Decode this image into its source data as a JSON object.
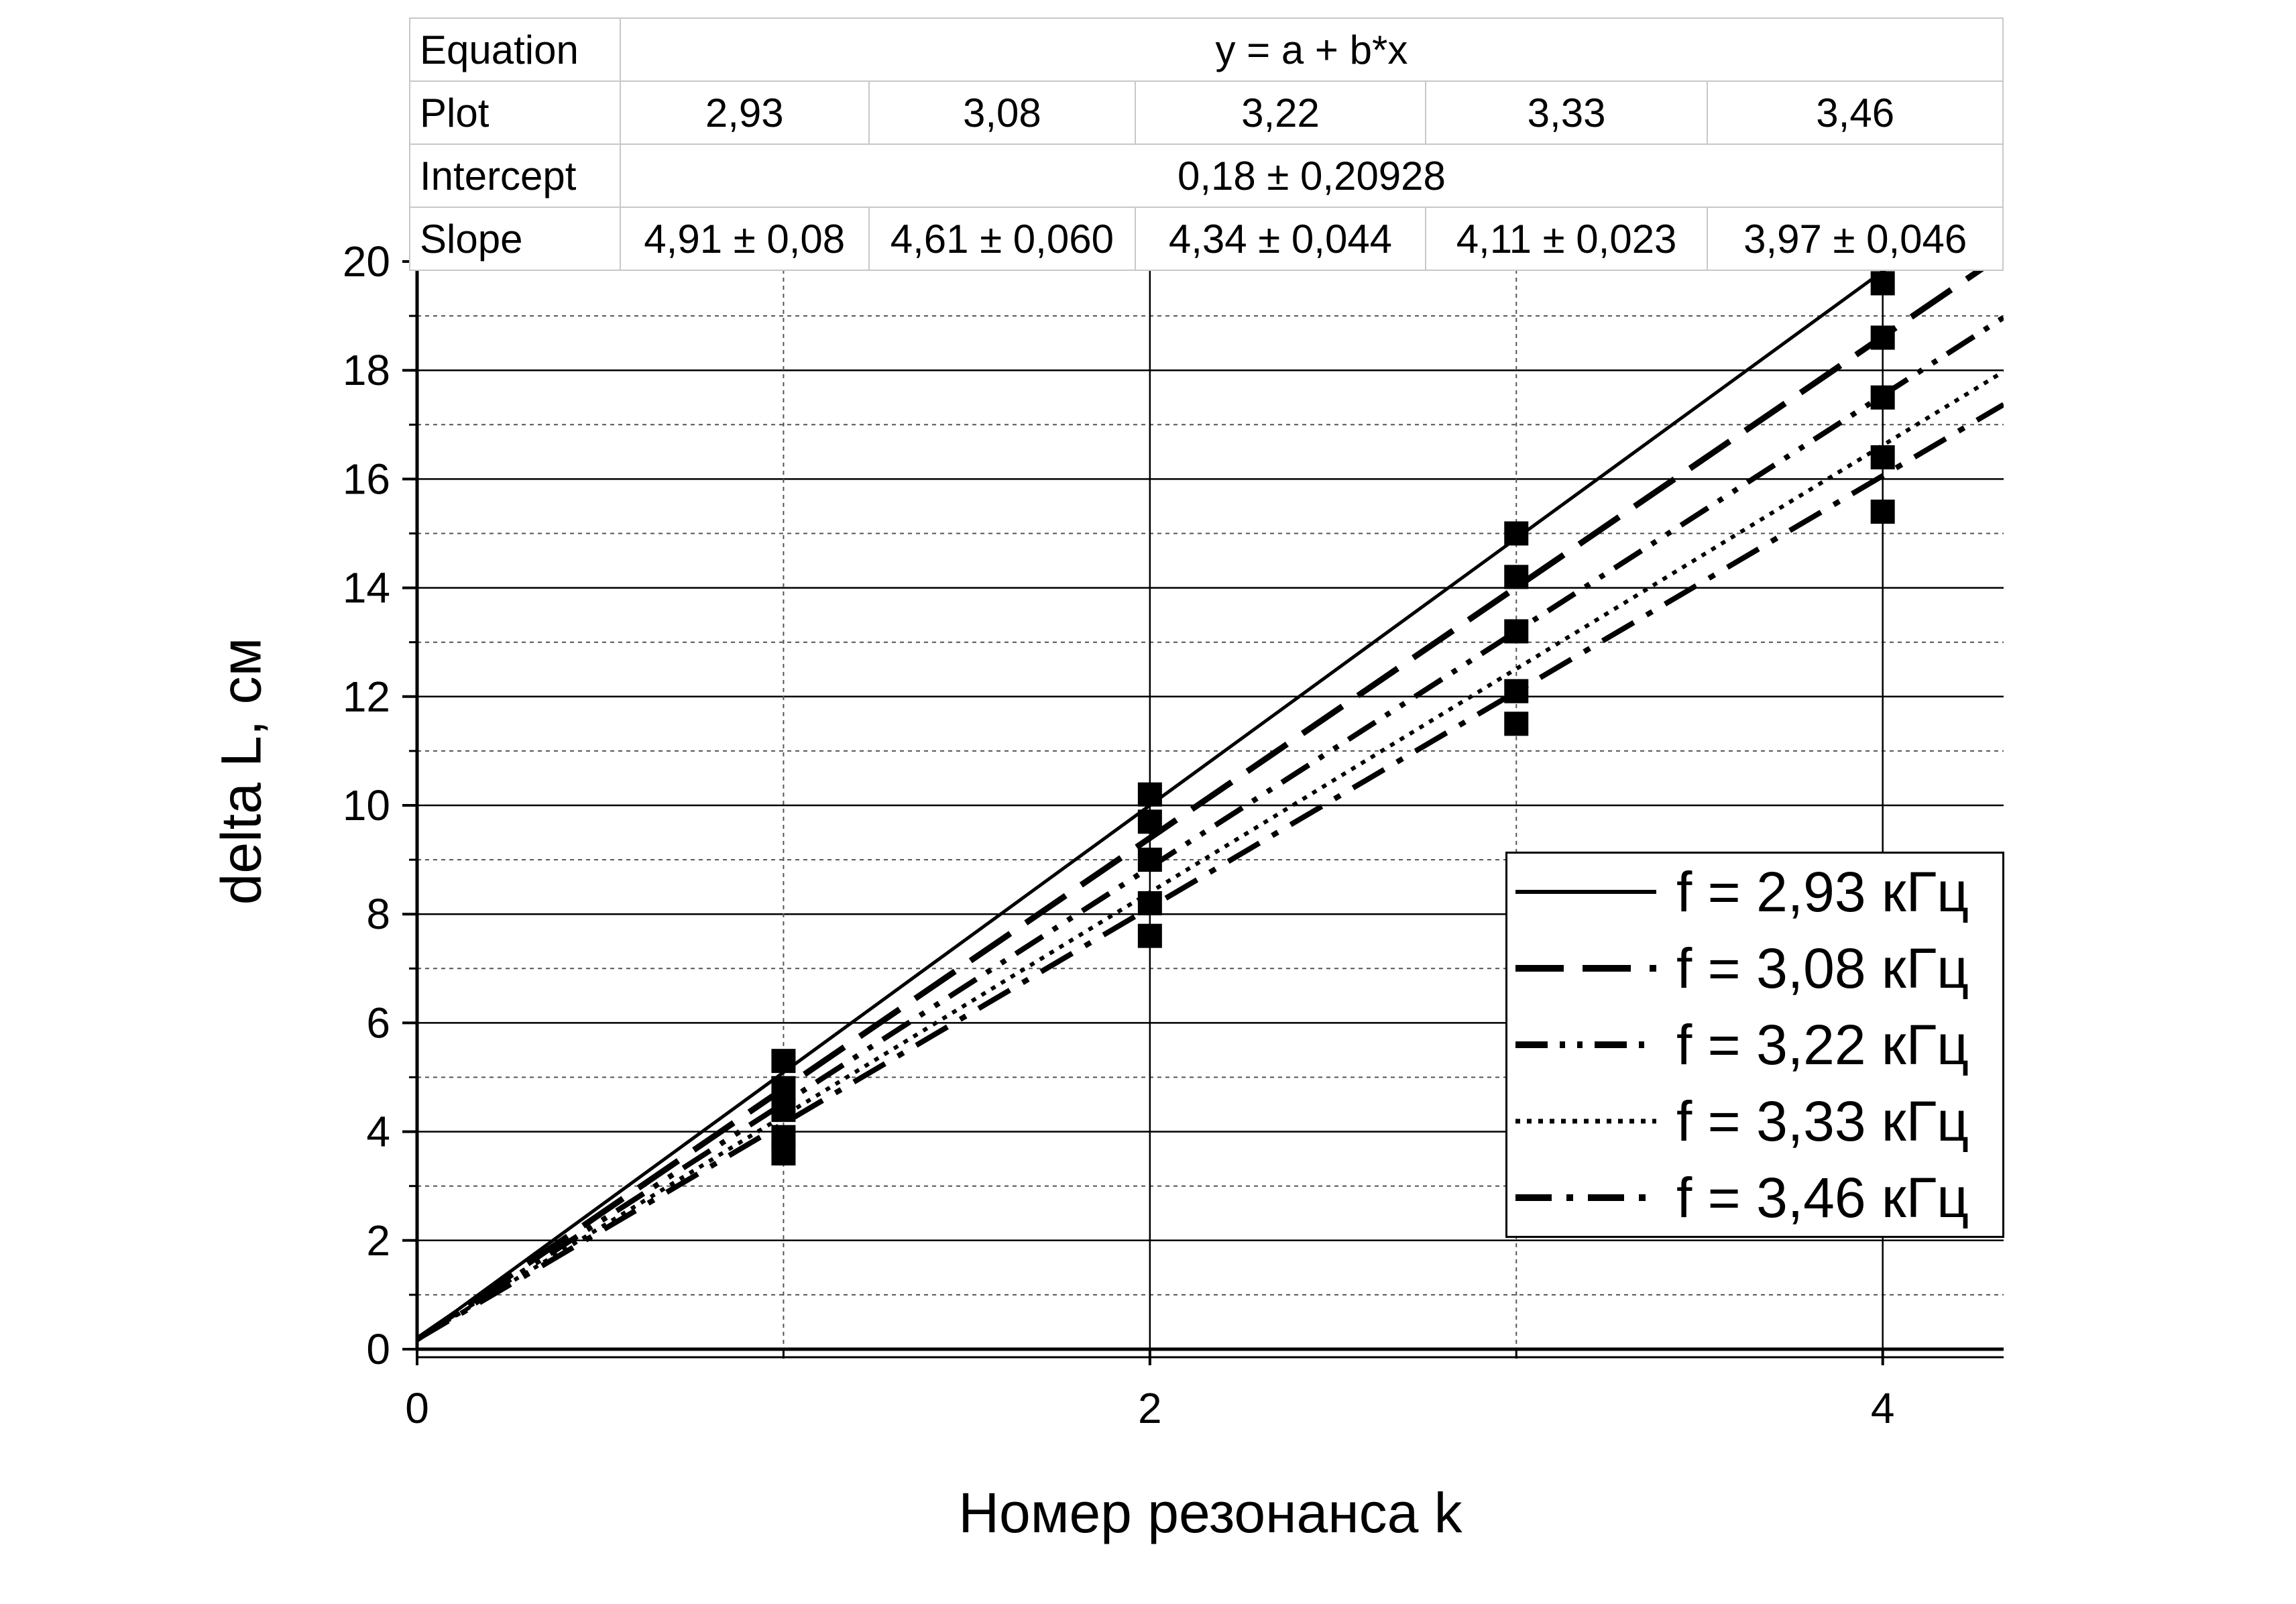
{
  "chart_data": {
    "type": "line",
    "xlabel": "Номер резонанса k",
    "ylabel": "delta L, см",
    "xlim": [
      0,
      4.33
    ],
    "ylim": [
      0,
      20
    ],
    "x_ticks": [
      "0",
      "2",
      "4"
    ],
    "y_ticks": [
      "0",
      "2",
      "4",
      "6",
      "8",
      "10",
      "12",
      "14",
      "16",
      "18",
      "20"
    ],
    "grid": true,
    "legend_position": "bottom-right",
    "series": [
      {
        "name": "f = 2,93 кГц",
        "style": "solid",
        "intercept": 0.18,
        "slope": 4.91,
        "x": [
          1,
          2,
          3,
          4
        ],
        "y": [
          5.3,
          10.2,
          15.0,
          19.6
        ]
      },
      {
        "name": "f = 3,08 кГц",
        "style": "dash",
        "intercept": 0.18,
        "slope": 4.61,
        "x": [
          1,
          2,
          3,
          4
        ],
        "y": [
          4.8,
          9.7,
          14.2,
          18.6
        ]
      },
      {
        "name": "f = 3,22 кГц",
        "style": "dash-dot-dot",
        "intercept": 0.18,
        "slope": 4.34,
        "x": [
          1,
          2,
          3,
          4
        ],
        "y": [
          4.4,
          9.0,
          13.2,
          17.5
        ]
      },
      {
        "name": "f = 3,33 кГц",
        "style": "dot",
        "intercept": 0.18,
        "slope": 4.11,
        "x": [
          1,
          2,
          3,
          4
        ],
        "y": [
          3.9,
          8.2,
          12.1,
          16.4
        ]
      },
      {
        "name": "f = 3,46 кГц",
        "style": "dash-dot",
        "intercept": 0.18,
        "slope": 3.97,
        "x": [
          1,
          2,
          3,
          4
        ],
        "y": [
          3.6,
          7.6,
          11.5,
          15.4
        ]
      }
    ],
    "fit_table": {
      "labels": {
        "equation": "Equation",
        "plot": "Plot",
        "intercept": "Intercept",
        "slope": "Slope"
      },
      "equation": "y = a + b*x",
      "plots": [
        "2,93",
        "3,08",
        "3,22",
        "3,33",
        "3,46"
      ],
      "intercept": "0,18 ± 0,20928",
      "slopes": [
        "4,91 ± 0,08",
        "4,61 ± 0,060",
        "4,34 ± 0,044",
        "4,11 ± 0,023",
        "3,97 ± 0,046"
      ]
    }
  }
}
